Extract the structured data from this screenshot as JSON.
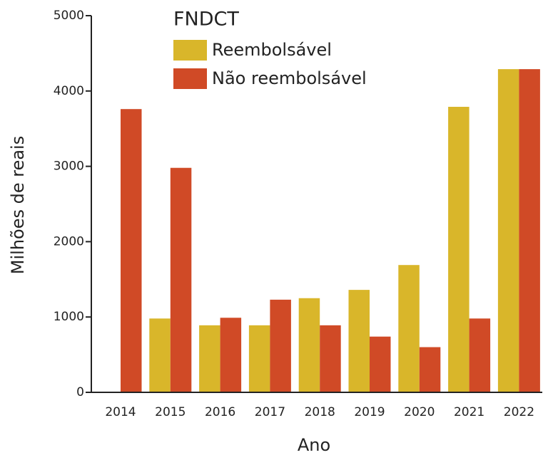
{
  "chart_data": {
    "type": "bar",
    "xlabel": "Ano",
    "ylabel": "Milhões de reais",
    "legend_title": "FNDCT",
    "categories": [
      "2014",
      "2015",
      "2016",
      "2017",
      "2018",
      "2019",
      "2020",
      "2021",
      "2022"
    ],
    "series": [
      {
        "name": "Reembolsável",
        "color": "#d9b62a",
        "values": [
          null,
          980,
          890,
          890,
          1250,
          1360,
          1690,
          3790,
          4290
        ]
      },
      {
        "name": "Não reembolsável",
        "color": "#d04a26",
        "values": [
          3760,
          2980,
          990,
          1230,
          890,
          740,
          600,
          980,
          4290
        ]
      }
    ],
    "ylim": [
      0,
      5000
    ],
    "yticks": [
      0,
      1000,
      2000,
      3000,
      4000,
      5000
    ],
    "legend": "upper left"
  }
}
